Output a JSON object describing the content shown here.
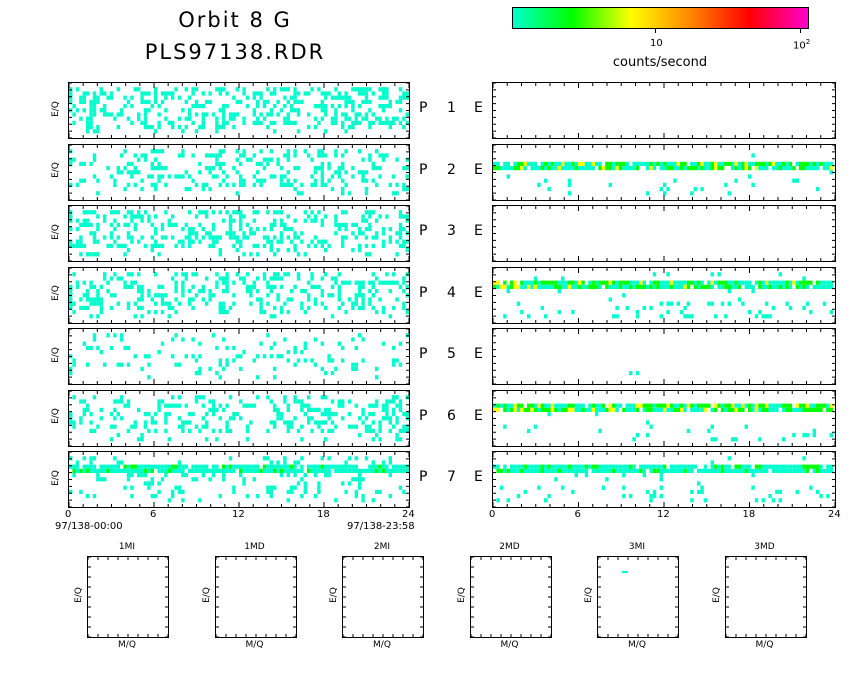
{
  "header": {
    "title_line1": "Orbit 8 G",
    "title_line2": "PLS97138.RDR"
  },
  "colorbar": {
    "label": "counts/second",
    "tick_10": "10",
    "tick_100_base": "10",
    "tick_100_exp": "2",
    "scale": "log",
    "range": [
      1,
      100
    ],
    "colors": [
      "#00ffcc",
      "#00ff00",
      "#ffff00",
      "#ff8800",
      "#ff0000",
      "#ff00cc"
    ]
  },
  "chart_data": [
    {
      "type": "heatmap",
      "group": "time-series",
      "x_ticks": [
        "0",
        "6",
        "12",
        "18",
        "24"
      ],
      "xlim": [
        0,
        24
      ],
      "date_start": "97/138-00:00",
      "date_end": "97/138-23:58",
      "ylabel": "E/Q",
      "rows": [
        {
          "p": "P",
          "num": "1",
          "e": "E",
          "left_density": 0.35,
          "right_density": 0.0,
          "right_band": null
        },
        {
          "p": "P",
          "num": "2",
          "e": "E",
          "left_density": 0.25,
          "right_density": 0.05,
          "right_band": {
            "y": 0.35,
            "intensity": "medium"
          }
        },
        {
          "p": "P",
          "num": "3",
          "e": "E",
          "left_density": 0.35,
          "right_density": 0.0,
          "right_band": null
        },
        {
          "p": "P",
          "num": "4",
          "e": "E",
          "left_density": 0.3,
          "right_density": 0.15,
          "right_band": {
            "y": 0.25,
            "intensity": "medium"
          }
        },
        {
          "p": "P",
          "num": "5",
          "e": "E",
          "left_density": 0.12,
          "right_density": 0.01,
          "right_band": null
        },
        {
          "p": "P",
          "num": "6",
          "e": "E",
          "left_density": 0.28,
          "right_density": 0.08,
          "right_band": {
            "y": 0.3,
            "intensity": "high"
          }
        },
        {
          "p": "P",
          "num": "7",
          "e": "E",
          "left_density": 0.2,
          "right_density": 0.12,
          "right_band": {
            "y": 0.25,
            "intensity": "low"
          },
          "left_band": {
            "y": 0.25
          }
        }
      ]
    },
    {
      "type": "heatmap",
      "group": "mass-spectra",
      "xlabel": "M/Q",
      "ylabel": "E/Q",
      "panels": [
        {
          "title": "1MI"
        },
        {
          "title": "1MD"
        },
        {
          "title": "2MI"
        },
        {
          "title": "2MD"
        },
        {
          "title": "3MI"
        },
        {
          "title": "3MD"
        }
      ]
    }
  ]
}
